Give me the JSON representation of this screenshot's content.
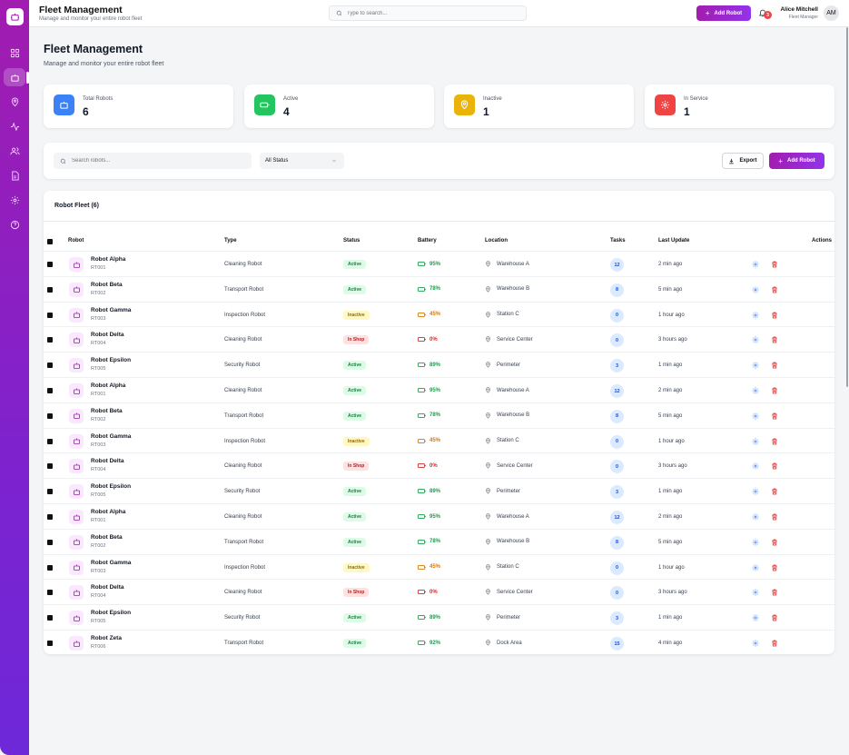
{
  "header": {
    "title": "Fleet Management",
    "subtitle": "Manage and monitor your entire robot fleet",
    "search_placeholder": "Type to search...",
    "add_robot_label": "Add Robot",
    "notifications_count": "3",
    "user_name": "Alice Mitchell",
    "user_role": "Fleet Manager",
    "user_initials": "AM"
  },
  "sidebar": {
    "items": [
      "dashboard-icon",
      "robot-icon",
      "location-icon",
      "activity-icon",
      "users-icon",
      "document-icon",
      "settings-icon",
      "help-icon"
    ],
    "active": "robot-icon"
  },
  "page": {
    "title": "Fleet Management",
    "subtitle": "Manage and monitor your entire robot fleet"
  },
  "stats": [
    {
      "label": "Total Robots",
      "value": "6",
      "color": "#3b82f6",
      "icon": "robot-icon"
    },
    {
      "label": "Active",
      "value": "4",
      "color": "#22c55e",
      "icon": "battery-icon"
    },
    {
      "label": "Inactive",
      "value": "1",
      "color": "#eab308",
      "icon": "location-icon"
    },
    {
      "label": "In Service",
      "value": "1",
      "color": "#ef4444",
      "icon": "settings-icon"
    }
  ],
  "filters": {
    "search_placeholder": "Search robots...",
    "status_value": "All Status",
    "export_label": "Export",
    "add_robot_label": "Add Robot"
  },
  "table": {
    "title": "Robot Fleet (6)",
    "columns": [
      "Robot",
      "Type",
      "Status",
      "Battery",
      "Location",
      "Tasks",
      "Last Update",
      "Actions"
    ],
    "rows": [
      {
        "name": "Robot Alpha",
        "id": "RT001",
        "type": "Cleaning Robot",
        "status": "Active",
        "battery": "95%",
        "location": "Warehouse A",
        "tasks": "12",
        "updated": "2 min ago"
      },
      {
        "name": "Robot Beta",
        "id": "RT002",
        "type": "Transport Robot",
        "status": "Active",
        "battery": "78%",
        "location": "Warehouse B",
        "tasks": "8",
        "updated": "5 min ago"
      },
      {
        "name": "Robot Gamma",
        "id": "RT003",
        "type": "Inspection Robot",
        "status": "Inactive",
        "battery": "45%",
        "location": "Station C",
        "tasks": "0",
        "updated": "1 hour ago"
      },
      {
        "name": "Robot Delta",
        "id": "RT004",
        "type": "Cleaning Robot",
        "status": "In Shop",
        "battery": "0%",
        "location": "Service Center",
        "tasks": "0",
        "updated": "3 hours ago"
      },
      {
        "name": "Robot Epsilon",
        "id": "RT005",
        "type": "Security Robot",
        "status": "Active",
        "battery": "89%",
        "location": "Perimeter",
        "tasks": "3",
        "updated": "1 min ago"
      },
      {
        "name": "Robot Alpha",
        "id": "RT001",
        "type": "Cleaning Robot",
        "status": "Active",
        "battery": "95%",
        "location": "Warehouse A",
        "tasks": "12",
        "updated": "2 min ago"
      },
      {
        "name": "Robot Beta",
        "id": "RT002",
        "type": "Transport Robot",
        "status": "Active",
        "battery": "78%",
        "location": "Warehouse B",
        "tasks": "8",
        "updated": "5 min ago"
      },
      {
        "name": "Robot Gamma",
        "id": "RT003",
        "type": "Inspection Robot",
        "status": "Inactive",
        "battery": "45%",
        "location": "Station C",
        "tasks": "0",
        "updated": "1 hour ago"
      },
      {
        "name": "Robot Delta",
        "id": "RT004",
        "type": "Cleaning Robot",
        "status": "In Shop",
        "battery": "0%",
        "location": "Service Center",
        "tasks": "0",
        "updated": "3 hours ago"
      },
      {
        "name": "Robot Epsilon",
        "id": "RT005",
        "type": "Security Robot",
        "status": "Active",
        "battery": "89%",
        "location": "Perimeter",
        "tasks": "3",
        "updated": "1 min ago"
      },
      {
        "name": "Robot Alpha",
        "id": "RT001",
        "type": "Cleaning Robot",
        "status": "Active",
        "battery": "95%",
        "location": "Warehouse A",
        "tasks": "12",
        "updated": "2 min ago"
      },
      {
        "name": "Robot Beta",
        "id": "RT002",
        "type": "Transport Robot",
        "status": "Active",
        "battery": "78%",
        "location": "Warehouse B",
        "tasks": "8",
        "updated": "5 min ago"
      },
      {
        "name": "Robot Gamma",
        "id": "RT003",
        "type": "Inspection Robot",
        "status": "Inactive",
        "battery": "45%",
        "location": "Station C",
        "tasks": "0",
        "updated": "1 hour ago"
      },
      {
        "name": "Robot Delta",
        "id": "RT004",
        "type": "Cleaning Robot",
        "status": "In Shop",
        "battery": "0%",
        "location": "Service Center",
        "tasks": "0",
        "updated": "3 hours ago"
      },
      {
        "name": "Robot Epsilon",
        "id": "RT005",
        "type": "Security Robot",
        "status": "Active",
        "battery": "89%",
        "location": "Perimeter",
        "tasks": "3",
        "updated": "1 min ago"
      },
      {
        "name": "Robot Zeta",
        "id": "RT006",
        "type": "Transport Robot",
        "status": "Active",
        "battery": "92%",
        "location": "Dock Area",
        "tasks": "15",
        "updated": "4 min ago"
      }
    ]
  }
}
